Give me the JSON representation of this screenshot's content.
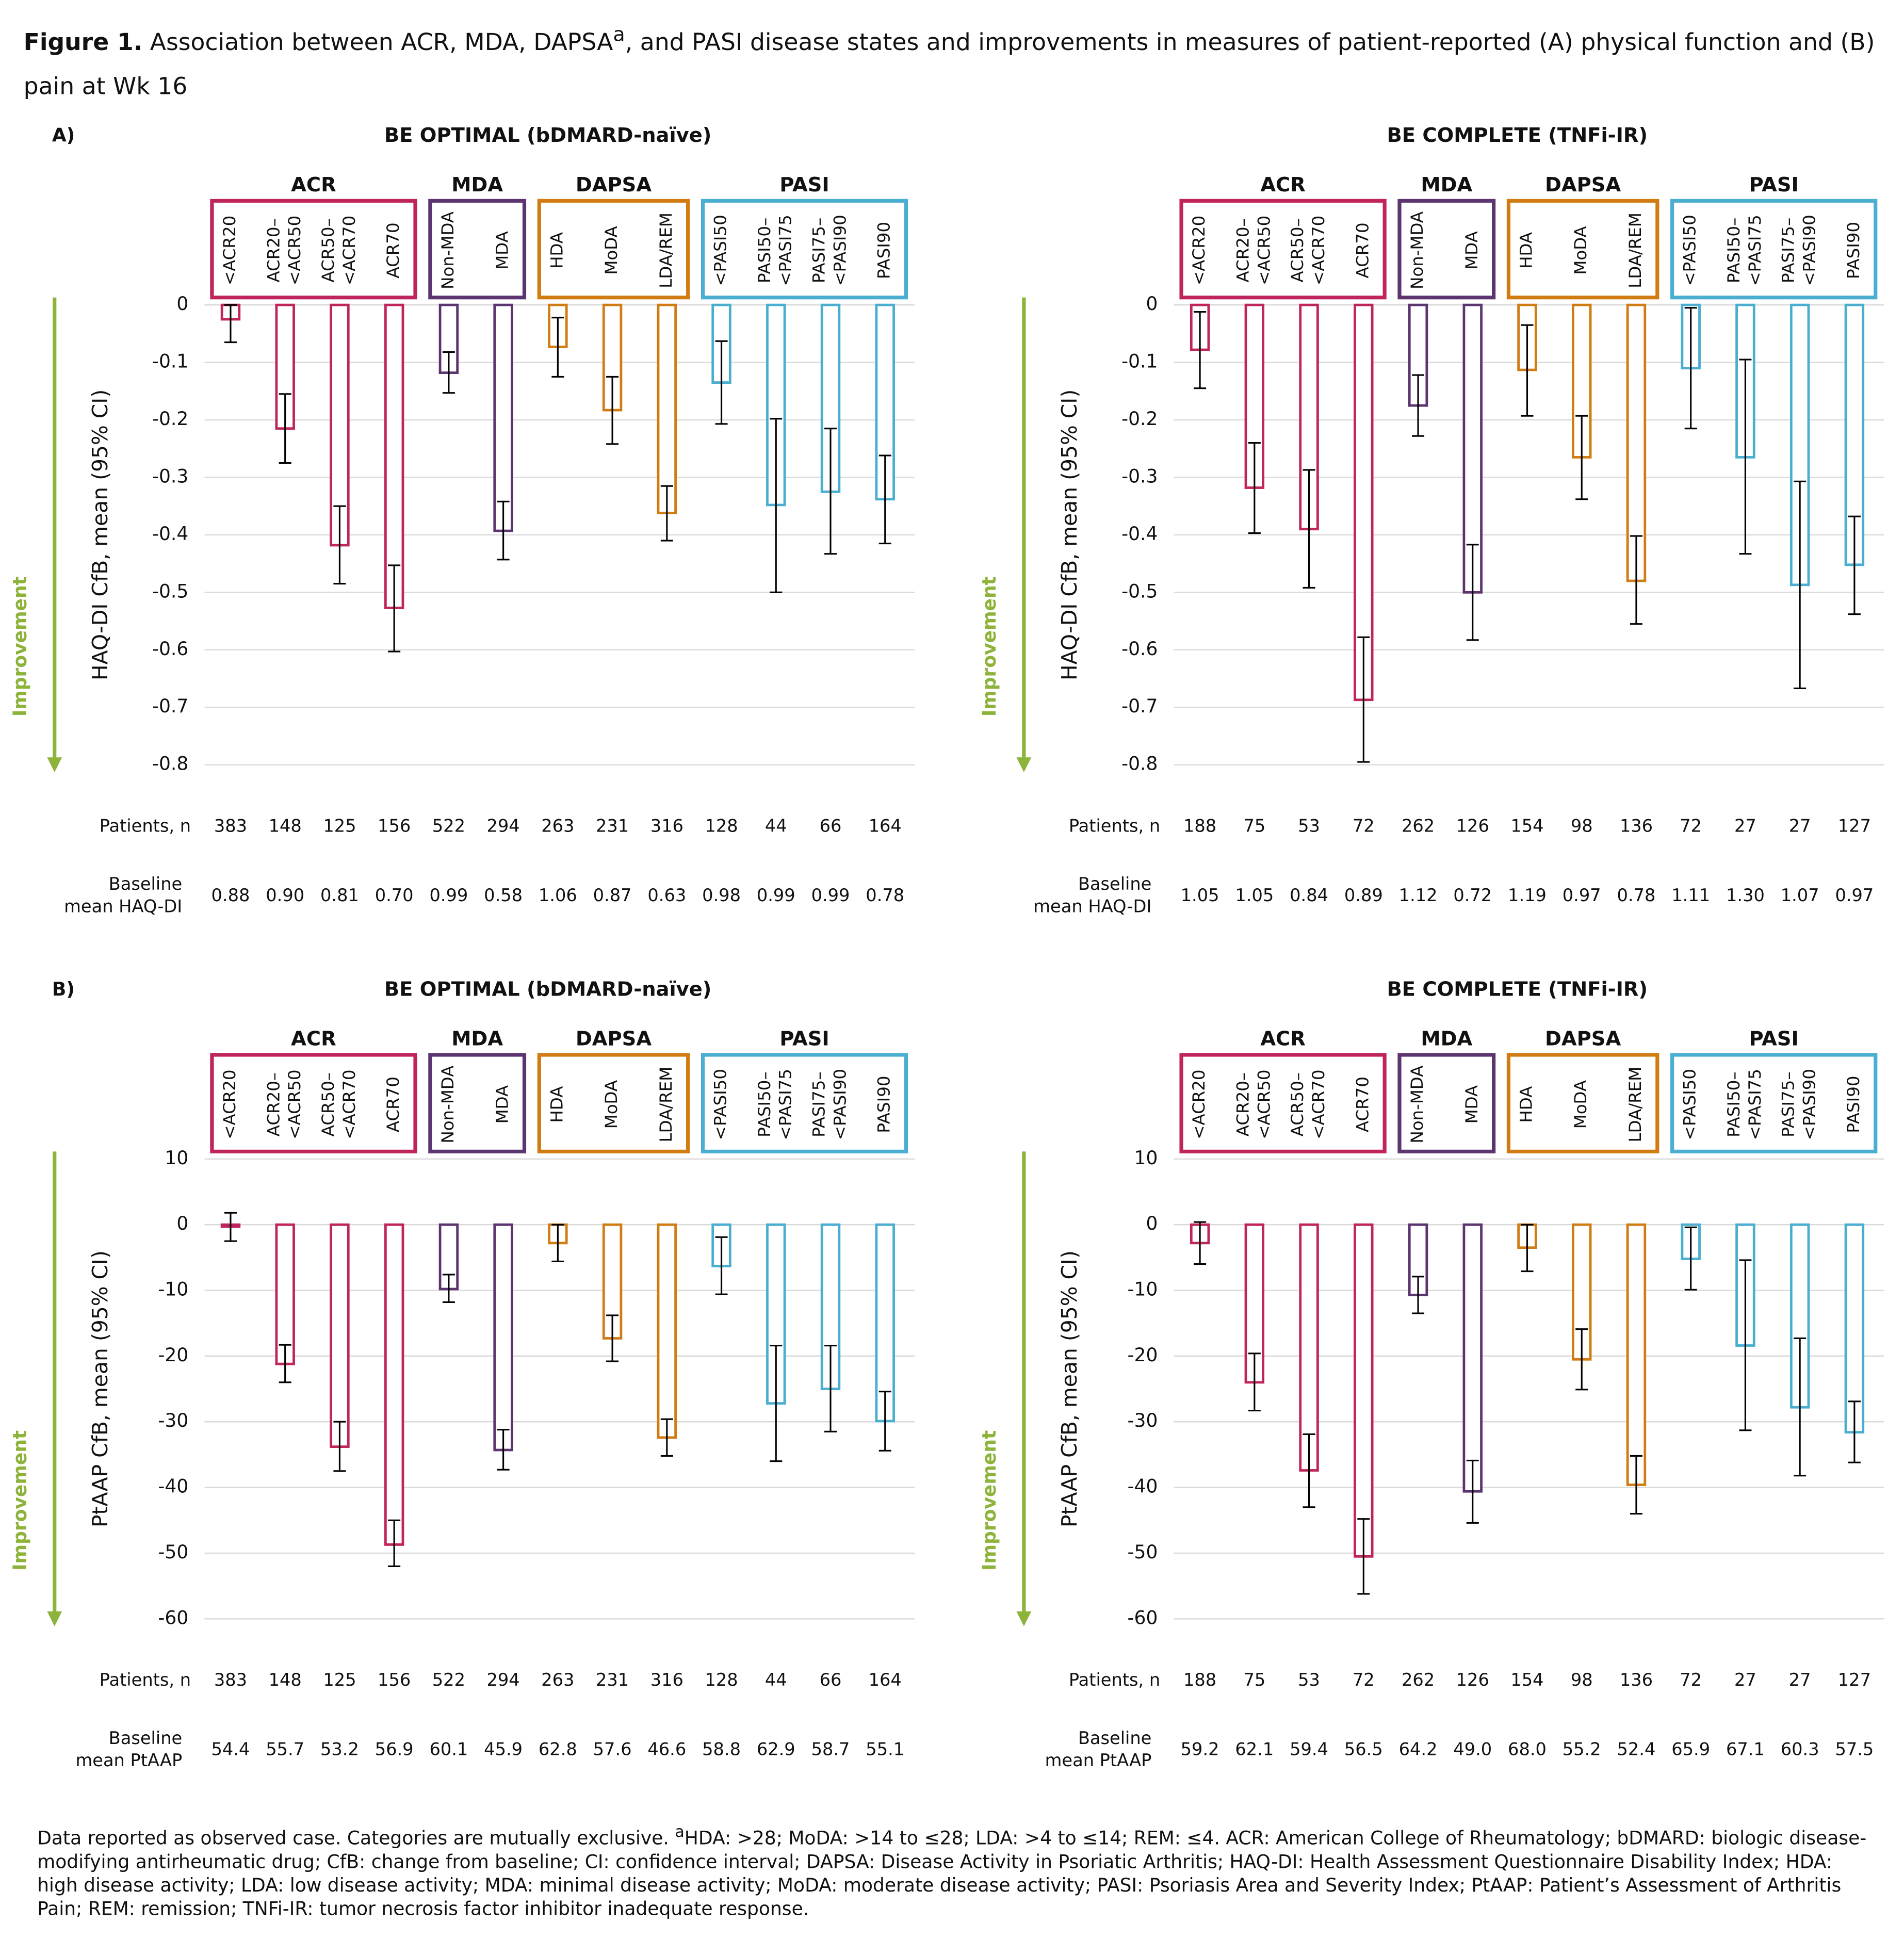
{
  "figure_title": {
    "label": "Figure 1.",
    "text_1": "Association between ACR, MDA, DAPSA",
    "sup": "a",
    "text_2": ", and PASI disease states and improvements in measures of patient-reported (A) physical function and (B) pain at Wk 16"
  },
  "footnote": {
    "text_1": "Data reported as observed case. Categories are mutually exclusive. ",
    "sup": "a",
    "text_2": "HDA: >28; MoDA: >14 to ≤28; LDA: >4 to ≤14; REM: ≤4. ACR: American College of Rheumatology; bDMARD: biologic disease-modifying antirheumatic drug; CfB: change from baseline; CI: confidence interval; DAPSA: Disease Activity in Psoriatic Arthritis; HAQ-DI: Health Assessment Questionnaire Disability Index; HDA: high disease activity; LDA: low disease activity; MDA: minimal disease activity; MoDA: moderate disease activity; PASI: Psoriasis Area and Severity Index; PtAAP: Patient’s Assessment of Arthritis Pain; REM: remission; TNFi-IR: tumor necrosis factor inhibitor inadequate response."
  },
  "chart_data": [
    {
      "type": "bar",
      "panel": "A)",
      "title": "BE OPTIMAL (bDMARD-naïve)",
      "ylabel": "HAQ-DI CfB, mean (95% CI)",
      "arrow_label": "Improvement",
      "ylim": [
        -0.8,
        0
      ],
      "yticks": [
        0,
        -0.1,
        -0.2,
        -0.3,
        -0.4,
        -0.5,
        -0.6,
        -0.7,
        -0.8
      ],
      "grid": true,
      "patients_label": "Patients, n",
      "baseline_label": [
        "Baseline",
        "mean HAQ-DI"
      ],
      "groups": [
        {
          "name": "ACR",
          "color": "#c0245c",
          "categories": [
            [
              "<ACR20"
            ],
            [
              "ACR20–",
              "<ACR50"
            ],
            [
              "ACR50–",
              "<ACR70"
            ],
            [
              "ACR70"
            ]
          ],
          "values": [
            -0.025,
            -0.215,
            -0.418,
            -0.527
          ],
          "ci_low": [
            -0.065,
            -0.275,
            -0.485,
            -0.603
          ],
          "ci_high": [
            0.0,
            -0.155,
            -0.35,
            -0.453
          ],
          "patients": [
            383,
            148,
            125,
            156
          ],
          "baseline": [
            "0.88",
            "0.90",
            "0.81",
            "0.70"
          ]
        },
        {
          "name": "MDA",
          "color": "#5b3470",
          "categories": [
            [
              "Non-MDA"
            ],
            [
              "MDA"
            ]
          ],
          "values": [
            -0.118,
            -0.393
          ],
          "ci_low": [
            -0.153,
            -0.443
          ],
          "ci_high": [
            -0.082,
            -0.342
          ],
          "patients": [
            522,
            294
          ],
          "baseline": [
            "0.99",
            "0.58"
          ]
        },
        {
          "name": "DAPSA",
          "color": "#d07c12",
          "categories": [
            [
              "HDA"
            ],
            [
              "MoDA"
            ],
            [
              "LDA/REM"
            ]
          ],
          "values": [
            -0.073,
            -0.183,
            -0.362
          ],
          "ci_low": [
            -0.125,
            -0.242,
            -0.41
          ],
          "ci_high": [
            -0.022,
            -0.125,
            -0.315
          ],
          "patients": [
            263,
            231,
            316
          ],
          "baseline": [
            "1.06",
            "0.87",
            "0.63"
          ]
        },
        {
          "name": "PASI",
          "color": "#4aaed0",
          "categories": [
            [
              "<PASI50"
            ],
            [
              "PASI50–",
              "<PASI75"
            ],
            [
              "PASI75–",
              "<PASI90"
            ],
            [
              "PASI90"
            ]
          ],
          "values": [
            -0.135,
            -0.348,
            -0.325,
            -0.338
          ],
          "ci_low": [
            -0.207,
            -0.5,
            -0.433,
            -0.415
          ],
          "ci_high": [
            -0.063,
            -0.198,
            -0.215,
            -0.262
          ],
          "patients": [
            128,
            44,
            66,
            164
          ],
          "baseline": [
            "0.98",
            "0.99",
            "0.99",
            "0.78"
          ]
        }
      ]
    },
    {
      "type": "bar",
      "title": "BE COMPLETE (TNFi-IR)",
      "ylabel": "HAQ-DI CfB, mean (95% CI)",
      "arrow_label": "Improvement",
      "ylim": [
        -0.8,
        0
      ],
      "yticks": [
        0,
        -0.1,
        -0.2,
        -0.3,
        -0.4,
        -0.5,
        -0.6,
        -0.7,
        -0.8
      ],
      "grid": true,
      "patients_label": "Patients, n",
      "baseline_label": [
        "Baseline",
        "mean HAQ-DI"
      ],
      "groups": [
        {
          "name": "ACR",
          "color": "#c0245c",
          "categories": [
            [
              "<ACR20"
            ],
            [
              "ACR20–",
              "<ACR50"
            ],
            [
              "ACR50–",
              "<ACR70"
            ],
            [
              "ACR70"
            ]
          ],
          "values": [
            -0.078,
            -0.318,
            -0.39,
            -0.687
          ],
          "ci_low": [
            -0.145,
            -0.397,
            -0.492,
            -0.795
          ],
          "ci_high": [
            -0.012,
            -0.24,
            -0.287,
            -0.578
          ],
          "patients": [
            188,
            75,
            53,
            72
          ],
          "baseline": [
            "1.05",
            "1.05",
            "0.84",
            "0.89"
          ]
        },
        {
          "name": "MDA",
          "color": "#5b3470",
          "categories": [
            [
              "Non-MDA"
            ],
            [
              "MDA"
            ]
          ],
          "values": [
            -0.175,
            -0.5
          ],
          "ci_low": [
            -0.228,
            -0.583
          ],
          "ci_high": [
            -0.122,
            -0.417
          ],
          "patients": [
            262,
            126
          ],
          "baseline": [
            "1.12",
            "0.72"
          ]
        },
        {
          "name": "DAPSA",
          "color": "#d07c12",
          "categories": [
            [
              "HDA"
            ],
            [
              "MoDA"
            ],
            [
              "LDA/REM"
            ]
          ],
          "values": [
            -0.113,
            -0.265,
            -0.48
          ],
          "ci_low": [
            -0.193,
            -0.338,
            -0.555
          ],
          "ci_high": [
            -0.035,
            -0.193,
            -0.402
          ],
          "patients": [
            154,
            98,
            136
          ],
          "baseline": [
            "1.19",
            "0.97",
            "0.78"
          ]
        },
        {
          "name": "PASI",
          "color": "#4aaed0",
          "categories": [
            [
              "<PASI50"
            ],
            [
              "PASI50–",
              "<PASI75"
            ],
            [
              "PASI75–",
              "<PASI90"
            ],
            [
              "PASI90"
            ]
          ],
          "values": [
            -0.11,
            -0.265,
            -0.487,
            -0.452
          ],
          "ci_low": [
            -0.215,
            -0.433,
            -0.667,
            -0.538
          ],
          "ci_high": [
            -0.005,
            -0.095,
            -0.307,
            -0.368
          ],
          "patients": [
            72,
            27,
            27,
            127
          ],
          "baseline": [
            "1.11",
            "1.30",
            "1.07",
            "0.97"
          ]
        }
      ]
    },
    {
      "type": "bar",
      "panel": "B)",
      "title": "BE OPTIMAL (bDMARD-naïve)",
      "ylabel": "PtAAP CfB, mean (95% CI)",
      "arrow_label": "Improvement",
      "ylim": [
        -60,
        10
      ],
      "yticks": [
        10,
        0,
        -10,
        -20,
        -30,
        -40,
        -50,
        -60
      ],
      "grid": true,
      "patients_label": "Patients, n",
      "baseline_label": [
        "Baseline",
        "mean PtAAP"
      ],
      "groups": [
        {
          "name": "ACR",
          "color": "#c0245c",
          "categories": [
            [
              "<ACR20"
            ],
            [
              "ACR20–",
              "<ACR50"
            ],
            [
              "ACR50–",
              "<ACR70"
            ],
            [
              "ACR70"
            ]
          ],
          "values": [
            -0.3,
            -21.2,
            -33.8,
            -48.7
          ],
          "ci_low": [
            -2.5,
            -24,
            -37.5,
            -52
          ],
          "ci_high": [
            1.8,
            -18.3,
            -30,
            -45
          ],
          "patients": [
            383,
            148,
            125,
            156
          ],
          "baseline": [
            "54.4",
            "55.7",
            "53.2",
            "56.9"
          ]
        },
        {
          "name": "MDA",
          "color": "#5b3470",
          "categories": [
            [
              "Non-MDA"
            ],
            [
              "MDA"
            ]
          ],
          "values": [
            -9.8,
            -34.3
          ],
          "ci_low": [
            -11.8,
            -37.3
          ],
          "ci_high": [
            -7.6,
            -31.2
          ],
          "patients": [
            522,
            294
          ],
          "baseline": [
            "60.1",
            "45.9"
          ]
        },
        {
          "name": "DAPSA",
          "color": "#d07c12",
          "categories": [
            [
              "HDA"
            ],
            [
              "MoDA"
            ],
            [
              "LDA/REM"
            ]
          ],
          "values": [
            -2.8,
            -17.3,
            -32.4
          ],
          "ci_low": [
            -5.6,
            -20.8,
            -35.2
          ],
          "ci_high": [
            0,
            -13.8,
            -29.6
          ],
          "patients": [
            263,
            231,
            316
          ],
          "baseline": [
            "62.8",
            "57.6",
            "46.6"
          ]
        },
        {
          "name": "PASI",
          "color": "#4aaed0",
          "categories": [
            [
              "<PASI50"
            ],
            [
              "PASI50–",
              "<PASI75"
            ],
            [
              "PASI75–",
              "<PASI90"
            ],
            [
              "PASI90"
            ]
          ],
          "values": [
            -6.3,
            -27.2,
            -25,
            -29.9
          ],
          "ci_low": [
            -10.6,
            -36,
            -31.5,
            -34.4
          ],
          "ci_high": [
            -1.9,
            -18.4,
            -18.4,
            -25.4
          ],
          "patients": [
            128,
            44,
            66,
            164
          ],
          "baseline": [
            "58.8",
            "62.9",
            "58.7",
            "55.1"
          ]
        }
      ]
    },
    {
      "type": "bar",
      "title": "BE COMPLETE (TNFi-IR)",
      "ylabel": "PtAAP CfB, mean (95% CI)",
      "arrow_label": "Improvement",
      "ylim": [
        -60,
        10
      ],
      "yticks": [
        10,
        0,
        -10,
        -20,
        -30,
        -40,
        -50,
        -60
      ],
      "grid": true,
      "patients_label": "Patients, n",
      "baseline_label": [
        "Baseline",
        "mean PtAAP"
      ],
      "groups": [
        {
          "name": "ACR",
          "color": "#c0245c",
          "categories": [
            [
              "<ACR20"
            ],
            [
              "ACR20–",
              "<ACR50"
            ],
            [
              "ACR50–",
              "<ACR70"
            ],
            [
              "ACR70"
            ]
          ],
          "values": [
            -2.8,
            -24,
            -37.4,
            -50.5
          ],
          "ci_low": [
            -6,
            -28.3,
            -43,
            -56.2
          ],
          "ci_high": [
            0.4,
            -19.6,
            -31.9,
            -44.8
          ],
          "patients": [
            188,
            75,
            53,
            72
          ],
          "baseline": [
            "59.2",
            "62.1",
            "59.4",
            "56.5"
          ]
        },
        {
          "name": "MDA",
          "color": "#5b3470",
          "categories": [
            [
              "Non-MDA"
            ],
            [
              "MDA"
            ]
          ],
          "values": [
            -10.7,
            -40.6
          ],
          "ci_low": [
            -13.5,
            -45.4
          ],
          "ci_high": [
            -7.9,
            -35.9
          ],
          "patients": [
            262,
            126
          ],
          "baseline": [
            "64.2",
            "49.0"
          ]
        },
        {
          "name": "DAPSA",
          "color": "#d07c12",
          "categories": [
            [
              "HDA"
            ],
            [
              "MoDA"
            ],
            [
              "LDA/REM"
            ]
          ],
          "values": [
            -3.5,
            -20.5,
            -39.6
          ],
          "ci_low": [
            -7.1,
            -25.1,
            -44
          ],
          "ci_high": [
            0,
            -15.9,
            -35.2
          ],
          "patients": [
            154,
            98,
            136
          ],
          "baseline": [
            "68.0",
            "55.2",
            "52.4"
          ]
        },
        {
          "name": "PASI",
          "color": "#4aaed0",
          "categories": [
            [
              "<PASI50"
            ],
            [
              "PASI50–",
              "<PASI75"
            ],
            [
              "PASI75–",
              "<PASI90"
            ],
            [
              "PASI90"
            ]
          ],
          "values": [
            -5.2,
            -18.4,
            -27.8,
            -31.6
          ],
          "ci_low": [
            -9.9,
            -31.3,
            -38.2,
            -36.2
          ],
          "ci_high": [
            -0.4,
            -5.4,
            -17.3,
            -26.9
          ],
          "patients": [
            72,
            27,
            27,
            127
          ],
          "baseline": [
            "65.9",
            "67.1",
            "60.3",
            "57.5"
          ]
        }
      ]
    }
  ]
}
